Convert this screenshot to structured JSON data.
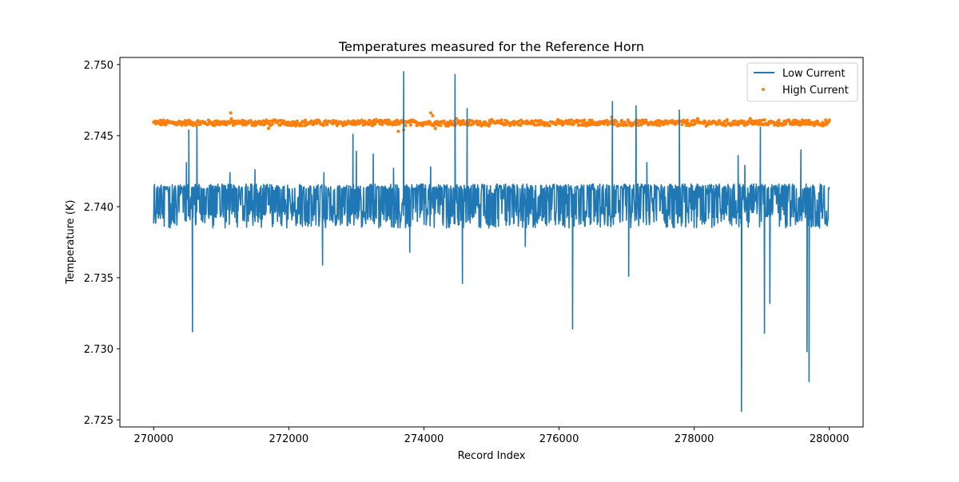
{
  "chart_data": {
    "type": "line",
    "title": "Temperatures measured for the Reference Horn",
    "xlabel": "Record Index",
    "ylabel": "Temperature (K)",
    "xlim": [
      269500,
      280500
    ],
    "ylim": [
      2.7245,
      2.7505
    ],
    "x_ticks": [
      270000,
      272000,
      274000,
      276000,
      278000,
      280000
    ],
    "x_tick_labels": [
      "270000",
      "272000",
      "274000",
      "276000",
      "278000",
      "280000"
    ],
    "y_ticks": [
      2.725,
      2.73,
      2.735,
      2.74,
      2.745,
      2.75
    ],
    "y_tick_labels": [
      "2.725",
      "2.730",
      "2.735",
      "2.740",
      "2.745",
      "2.750"
    ],
    "grid": false,
    "legend_position": "top-right",
    "series": [
      {
        "name": "Low Current",
        "style": "line",
        "color": "#1f77b4",
        "x_range": [
          270000,
          280000
        ],
        "band_low": 2.7385,
        "band_high": 2.7416,
        "baseline": 2.7405,
        "spikes": [
          {
            "x": 270485,
            "y": 2.7431
          },
          {
            "x": 270520,
            "y": 2.7454
          },
          {
            "x": 270575,
            "y": 2.7312
          },
          {
            "x": 270640,
            "y": 2.7456
          },
          {
            "x": 271130,
            "y": 2.7424
          },
          {
            "x": 271500,
            "y": 2.7426
          },
          {
            "x": 272500,
            "y": 2.7359
          },
          {
            "x": 272520,
            "y": 2.7424
          },
          {
            "x": 272950,
            "y": 2.7451
          },
          {
            "x": 273000,
            "y": 2.7439
          },
          {
            "x": 273250,
            "y": 2.7437
          },
          {
            "x": 273550,
            "y": 2.7427
          },
          {
            "x": 273700,
            "y": 2.7495
          },
          {
            "x": 273790,
            "y": 2.7368
          },
          {
            "x": 274100,
            "y": 2.7428
          },
          {
            "x": 274460,
            "y": 2.7493
          },
          {
            "x": 274570,
            "y": 2.7346
          },
          {
            "x": 274640,
            "y": 2.7469
          },
          {
            "x": 274960,
            "y": 2.7385
          },
          {
            "x": 275500,
            "y": 2.7372
          },
          {
            "x": 276200,
            "y": 2.7314
          },
          {
            "x": 276790,
            "y": 2.7474
          },
          {
            "x": 277030,
            "y": 2.7351
          },
          {
            "x": 277140,
            "y": 2.7471
          },
          {
            "x": 277300,
            "y": 2.7431
          },
          {
            "x": 277780,
            "y": 2.7468
          },
          {
            "x": 278650,
            "y": 2.7436
          },
          {
            "x": 278700,
            "y": 2.7256
          },
          {
            "x": 278750,
            "y": 2.7429
          },
          {
            "x": 278980,
            "y": 2.7456
          },
          {
            "x": 279040,
            "y": 2.7311
          },
          {
            "x": 279120,
            "y": 2.7332
          },
          {
            "x": 279580,
            "y": 2.744
          },
          {
            "x": 279670,
            "y": 2.7298
          },
          {
            "x": 279700,
            "y": 2.7277
          }
        ]
      },
      {
        "name": "High Current",
        "style": "scatter",
        "color": "#ff7f0e",
        "x_range": [
          270000,
          280000
        ],
        "center": 2.7459,
        "spread": 0.00018,
        "outliers": [
          {
            "x": 271140,
            "y": 2.7466
          },
          {
            "x": 271150,
            "y": 2.7462
          },
          {
            "x": 271700,
            "y": 2.7455
          },
          {
            "x": 273620,
            "y": 2.7453
          },
          {
            "x": 273700,
            "y": 2.7454
          },
          {
            "x": 274100,
            "y": 2.7466
          },
          {
            "x": 274130,
            "y": 2.7464
          },
          {
            "x": 274170,
            "y": 2.7455
          },
          {
            "x": 274480,
            "y": 2.7462
          },
          {
            "x": 276780,
            "y": 2.7463
          },
          {
            "x": 277150,
            "y": 2.7461
          },
          {
            "x": 278050,
            "y": 2.7462
          },
          {
            "x": 278830,
            "y": 2.7462
          },
          {
            "x": 279600,
            "y": 2.7461
          },
          {
            "x": 279900,
            "y": 2.7457
          }
        ]
      }
    ]
  }
}
